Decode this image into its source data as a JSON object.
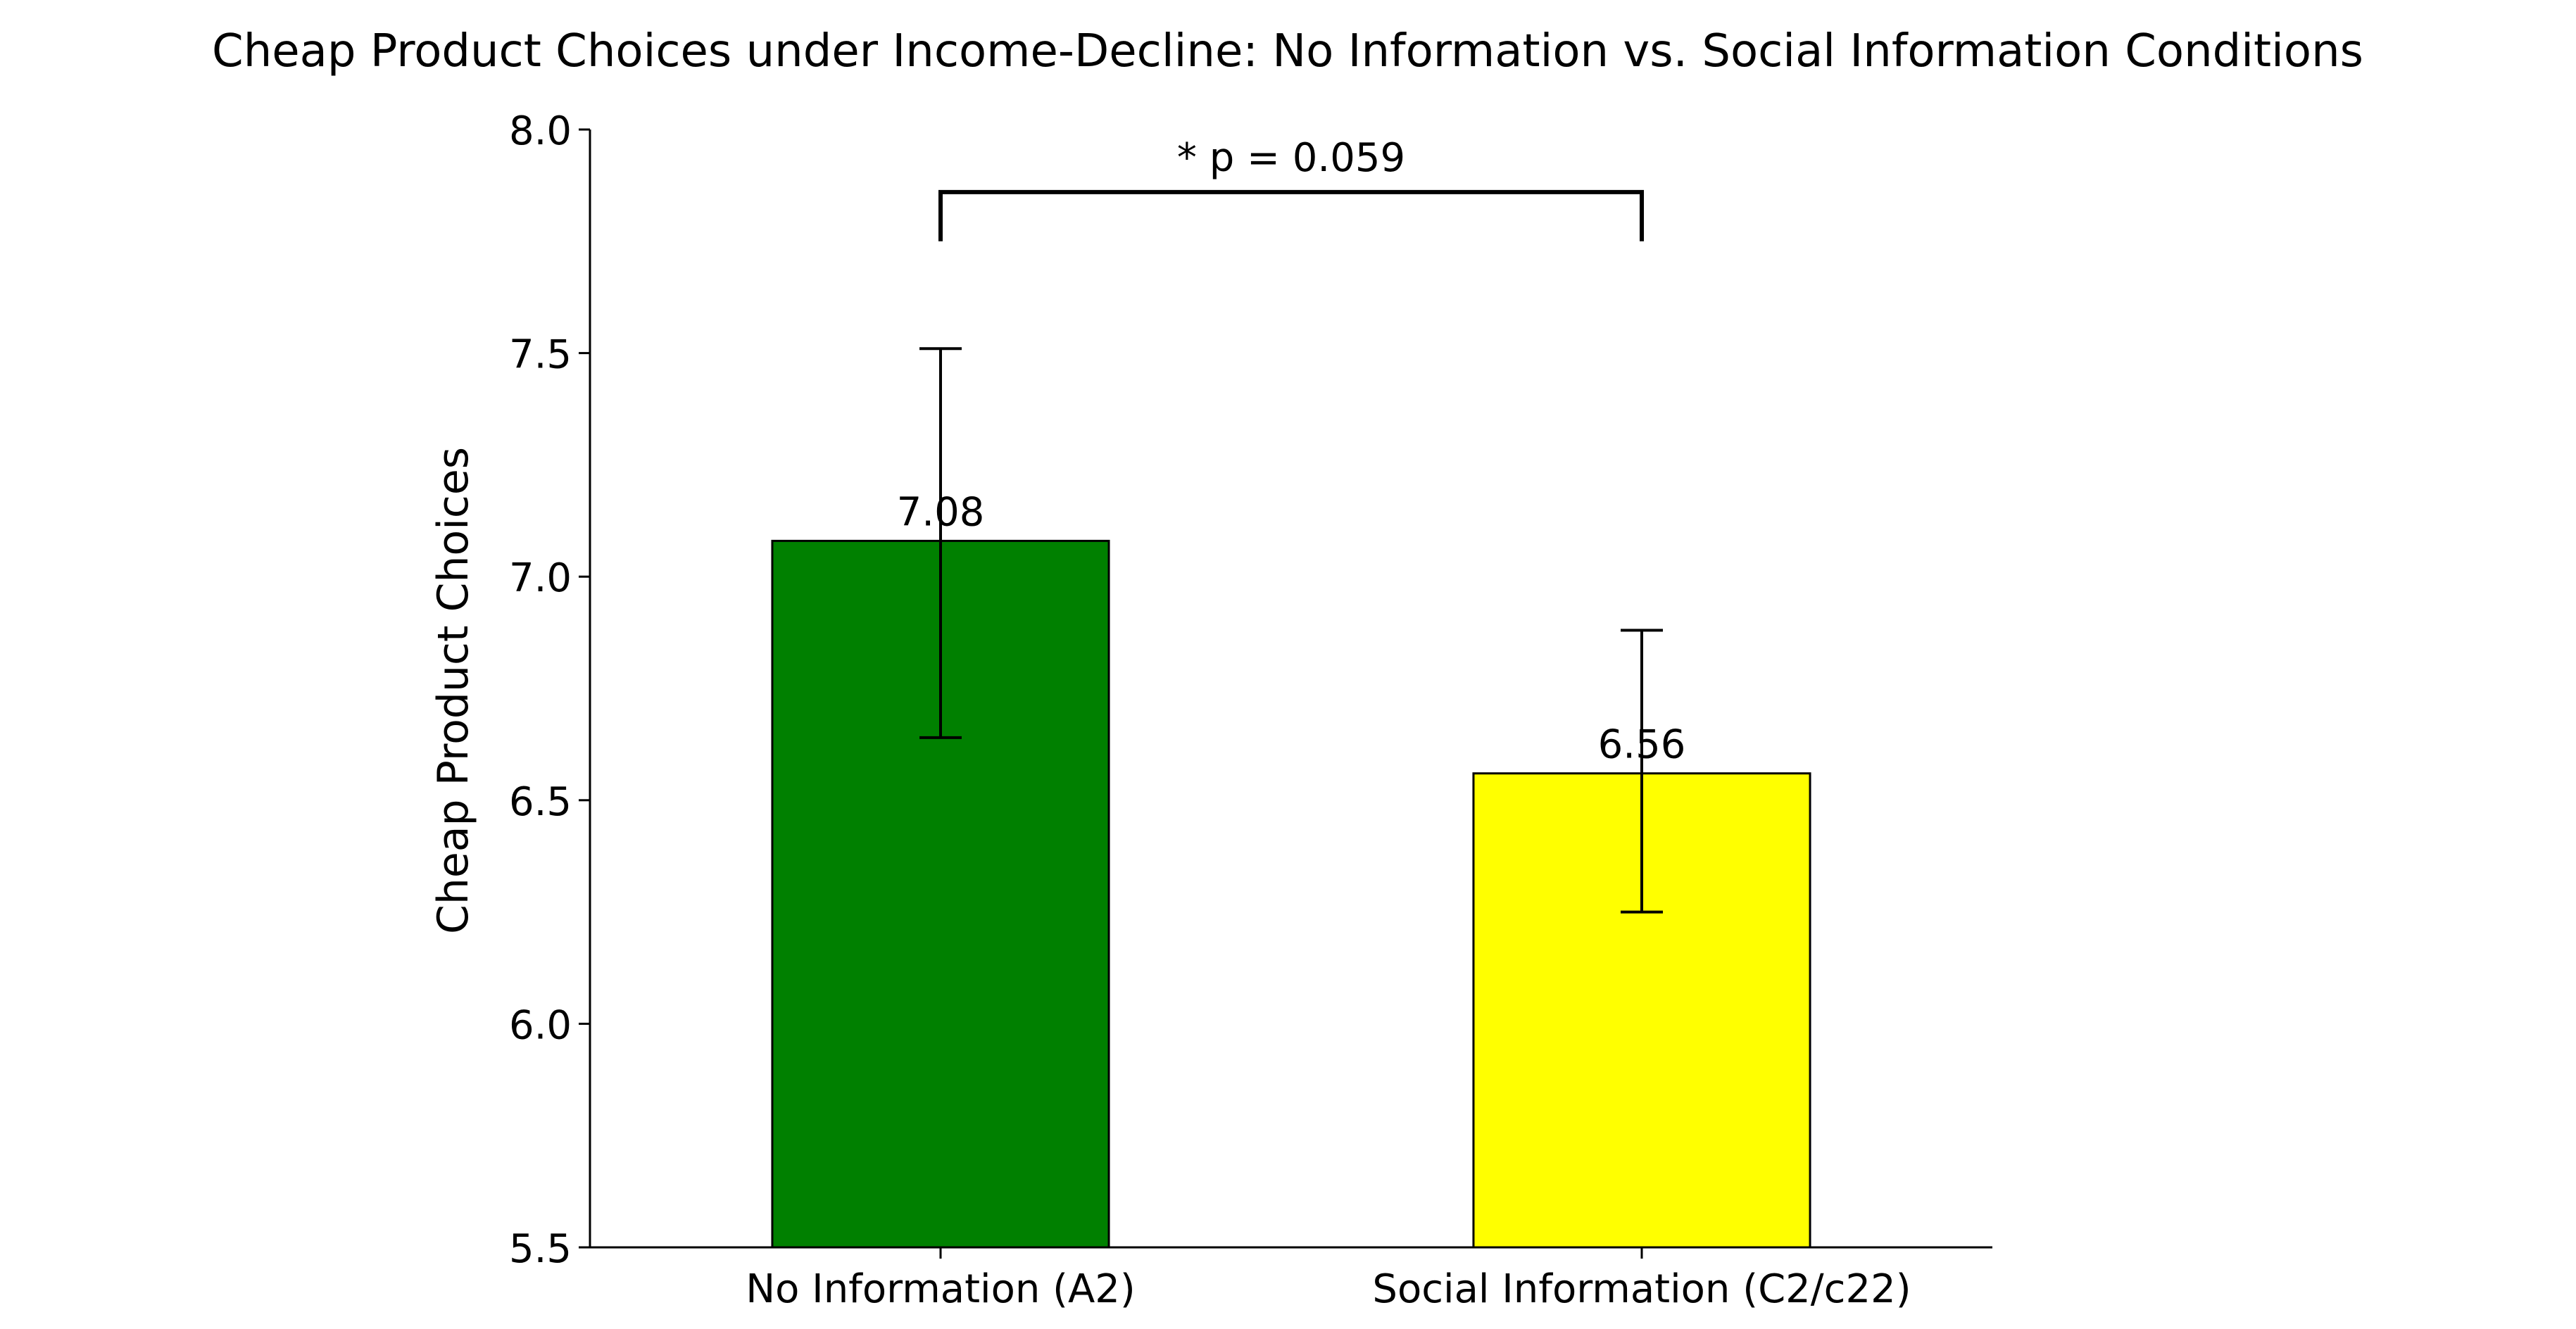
{
  "chart_data": {
    "type": "bar",
    "title": "Cheap Product Choices under Income-Decline: No Information vs. Social Information Conditions",
    "xlabel": "",
    "ylabel": "Cheap Product Choices",
    "ylim": [
      5.5,
      8.0
    ],
    "yticks": [
      "5.5",
      "6.0",
      "6.5",
      "7.0",
      "7.5",
      "8.0"
    ],
    "categories": [
      "No Information (A2)",
      "Social Information (C2/c22)"
    ],
    "values": [
      7.08,
      6.56
    ],
    "value_labels": [
      "7.08",
      "6.56"
    ],
    "error_low": [
      6.64,
      6.25
    ],
    "error_high": [
      7.51,
      6.88
    ],
    "colors": [
      "#008000",
      "#ffff00"
    ],
    "edge_color": "#000000",
    "annotation": {
      "text": "* p = 0.059",
      "y_bracket_bottom": 7.75,
      "y_bracket_top": 7.86
    },
    "grid": false,
    "legend": "none"
  }
}
